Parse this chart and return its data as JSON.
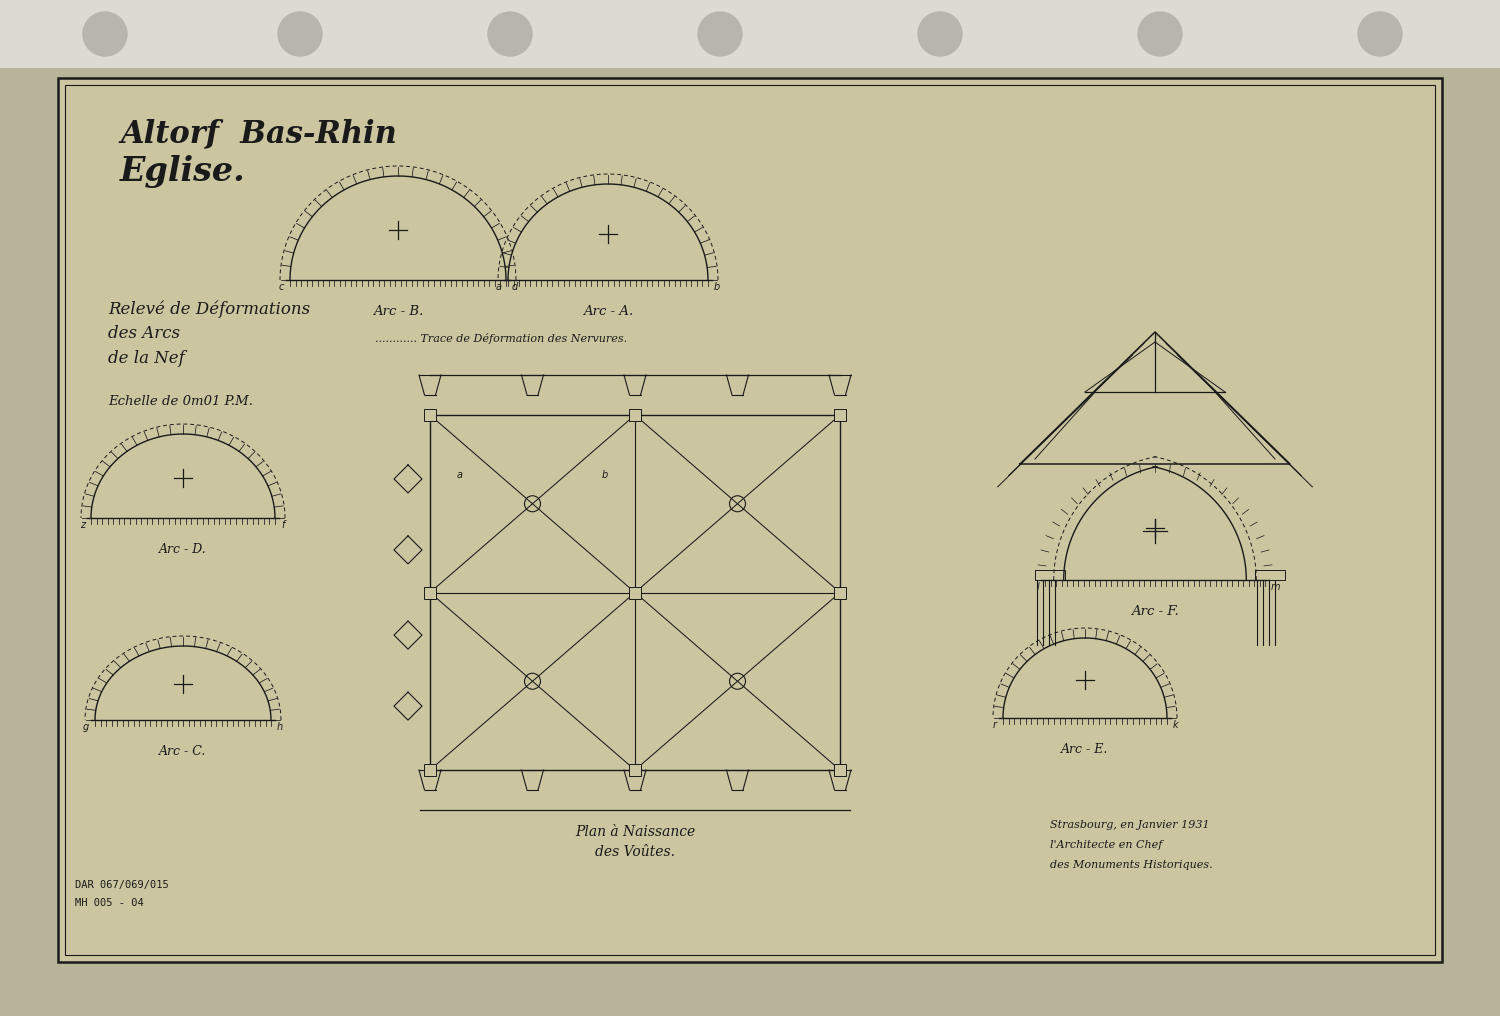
{
  "bg_outer": "#b8b49a",
  "bg_paper": "#ccc8a8",
  "bg_inner": "#cbc5a0",
  "border_color": "#1a1a1a",
  "line_color": "#1a1a1a",
  "text_color": "#1a1a1a",
  "top_strip": "#dddad2",
  "hole_color": "#b8b5ae",
  "title1": "Altorf  Bas-Rhin",
  "title2": "Eglise.",
  "subtitle1": "Relevé de Déformations",
  "subtitle2": "des Arcs",
  "subtitle3": "de la Nef",
  "subtitle4": "Echelle de 0m01 P.M.",
  "label_B": "Arc - B.",
  "label_A": "Arc - A.",
  "label_D": "Arc - D.",
  "label_C": "Arc - C.",
  "label_E": "Arc - E.",
  "label_F": "Arc - F.",
  "trace_label": "............ Trace de Déformation des Nervures.",
  "plan_label1": "Plan à Naissance",
  "plan_label2": "des Voûtes.",
  "sign1": "Strasbourg, en Janvier 1931",
  "sign2": "l'Architecte en Chef",
  "sign3": "des Monuments Historiques.",
  "ref1": "DAR 067/069/015",
  "ref2": "MH 005 - 04"
}
